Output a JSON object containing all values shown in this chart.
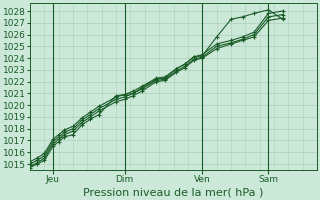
{
  "title": "",
  "xlabel": "Pression niveau de la mer( hPa )",
  "bg_color": "#cce8d8",
  "grid_color": "#aacfba",
  "line_color": "#1a5c28",
  "ylim": [
    1014.5,
    1028.7
  ],
  "yticks": [
    1015,
    1016,
    1017,
    1018,
    1019,
    1020,
    1021,
    1022,
    1023,
    1024,
    1025,
    1026,
    1027,
    1028
  ],
  "xtick_labels": [
    "Jeu",
    "Dim",
    "Ven",
    "Sam"
  ],
  "xtick_pos": [
    0.08,
    0.33,
    0.6,
    0.83
  ],
  "xlim": [
    0.0,
    1.0
  ],
  "series": [
    [
      1014.7,
      1015.0,
      1015.3,
      1016.5,
      1016.9,
      1017.3,
      1017.5,
      1018.3,
      1018.8,
      1019.2,
      1020.8,
      1020.9,
      1021.0,
      1021.5,
      1022.2,
      1022.3,
      1023.1,
      1023.5,
      1024.1,
      1024.2,
      1025.8,
      1027.3,
      1027.5,
      1027.8,
      1028.1,
      1027.3
    ],
    [
      1014.8,
      1015.1,
      1015.5,
      1016.7,
      1017.1,
      1017.5,
      1017.8,
      1018.5,
      1019.0,
      1019.5,
      1020.3,
      1020.5,
      1020.8,
      1021.2,
      1022.0,
      1022.1,
      1022.8,
      1023.2,
      1023.8,
      1024.0,
      1024.8,
      1025.2,
      1025.5,
      1025.8,
      1027.2,
      1027.4
    ],
    [
      1015.0,
      1015.3,
      1015.7,
      1016.9,
      1017.3,
      1017.7,
      1018.0,
      1018.7,
      1019.2,
      1019.7,
      1020.5,
      1020.7,
      1021.0,
      1021.4,
      1022.1,
      1022.2,
      1022.9,
      1023.3,
      1023.9,
      1024.1,
      1025.0,
      1025.3,
      1025.6,
      1026.0,
      1027.5,
      1027.7
    ],
    [
      1015.2,
      1015.5,
      1015.9,
      1017.1,
      1017.5,
      1017.9,
      1018.2,
      1018.9,
      1019.4,
      1019.9,
      1020.7,
      1020.9,
      1021.2,
      1021.6,
      1022.3,
      1022.4,
      1023.1,
      1023.5,
      1024.1,
      1024.3,
      1025.2,
      1025.5,
      1025.8,
      1026.2,
      1027.8,
      1028.0
    ]
  ],
  "x_positions": [
    0.0,
    0.025,
    0.05,
    0.08,
    0.1,
    0.12,
    0.15,
    0.18,
    0.21,
    0.24,
    0.3,
    0.33,
    0.36,
    0.39,
    0.44,
    0.47,
    0.51,
    0.54,
    0.57,
    0.6,
    0.65,
    0.7,
    0.74,
    0.78,
    0.83,
    0.88
  ],
  "vline_color": "#1a5c28",
  "vline_positions": [
    0.08,
    0.33,
    0.6,
    0.83
  ],
  "xlabel_fontsize": 8,
  "tick_fontsize": 6.5,
  "figsize": [
    3.2,
    2.0
  ],
  "dpi": 100
}
